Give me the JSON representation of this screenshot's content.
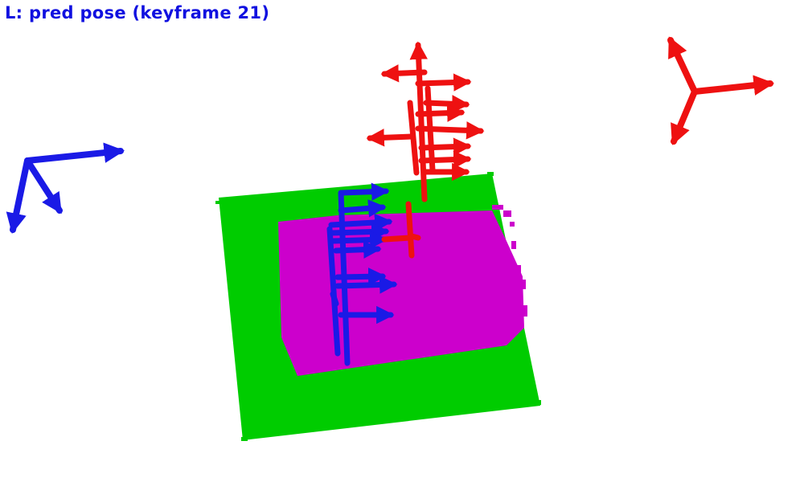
{
  "viewer": {
    "label": "L: pred pose (keyframe 21)"
  },
  "colors": {
    "background": "#ffffff",
    "label": "#1010e0",
    "ground_plane": "#00cc00",
    "object_cloud": "#cc00cc",
    "pred_pose_axes": "#1a1ae6",
    "gt_pose_axes": "#ee1111"
  },
  "legend_icons": [
    "blue-axes-icon",
    "red-axes-icon"
  ]
}
